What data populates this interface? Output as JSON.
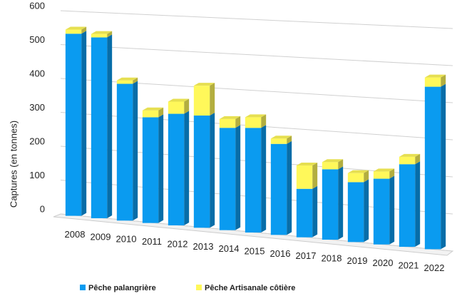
{
  "chart_data": {
    "type": "bar3d_stacked",
    "categories": [
      "2008",
      "2009",
      "2010",
      "2011",
      "2012",
      "2013",
      "2014",
      "2015",
      "2016",
      "2017",
      "2018",
      "2019",
      "2020",
      "2021",
      "2022"
    ],
    "series": [
      {
        "name": "Pêche palangrière",
        "color": "#0a9bf0",
        "values": [
          535,
          528,
          397,
          305,
          320,
          320,
          290,
          295,
          255,
          135,
          195,
          165,
          180,
          225,
          440
        ]
      },
      {
        "name": "Pêche Artisanale côtière",
        "color": "#fff85a",
        "values": [
          12,
          10,
          10,
          20,
          35,
          85,
          25,
          30,
          15,
          65,
          20,
          25,
          20,
          20,
          25
        ]
      }
    ],
    "ylabel": "Captures  (en tonnes)",
    "ylim": [
      0,
      600
    ],
    "yticks": [
      0,
      100,
      200,
      300,
      400,
      500,
      600
    ],
    "grid": true,
    "legend": "bottom"
  }
}
